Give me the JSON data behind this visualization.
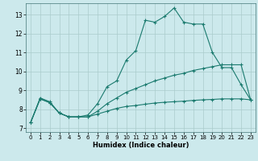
{
  "xlabel": "Humidex (Indice chaleur)",
  "bg_color": "#cce9ec",
  "grid_color": "#aacccc",
  "line_color": "#1a7a6e",
  "x_ticks": [
    0,
    1,
    2,
    3,
    4,
    5,
    6,
    7,
    8,
    9,
    10,
    11,
    12,
    13,
    14,
    15,
    16,
    17,
    18,
    19,
    20,
    21,
    22,
    23
  ],
  "y_ticks": [
    7,
    8,
    9,
    10,
    11,
    12,
    13
  ],
  "xlim": [
    -0.5,
    23.5
  ],
  "ylim": [
    6.8,
    13.6
  ],
  "series1_x": [
    0,
    1,
    2,
    3,
    4,
    5,
    6,
    7,
    8,
    9,
    10,
    11,
    12,
    13,
    14,
    15,
    16,
    17,
    18,
    19,
    20,
    21,
    22,
    23
  ],
  "series1_y": [
    7.3,
    8.6,
    8.4,
    7.8,
    7.6,
    7.6,
    7.7,
    8.3,
    9.2,
    9.5,
    10.6,
    11.1,
    12.7,
    12.6,
    12.9,
    13.35,
    12.6,
    12.5,
    12.5,
    11.0,
    10.2,
    10.2,
    9.3,
    8.5
  ],
  "series2_x": [
    0,
    1,
    2,
    3,
    4,
    5,
    6,
    7,
    8,
    9,
    10,
    11,
    12,
    13,
    14,
    15,
    16,
    17,
    18,
    19,
    20,
    21,
    22,
    23
  ],
  "series2_y": [
    7.3,
    8.55,
    8.35,
    7.8,
    7.6,
    7.6,
    7.6,
    7.9,
    8.3,
    8.6,
    8.9,
    9.1,
    9.3,
    9.5,
    9.65,
    9.8,
    9.9,
    10.05,
    10.15,
    10.25,
    10.35,
    10.35,
    10.35,
    8.5
  ],
  "series3_x": [
    0,
    1,
    2,
    3,
    4,
    5,
    6,
    7,
    8,
    9,
    10,
    11,
    12,
    13,
    14,
    15,
    16,
    17,
    18,
    19,
    20,
    21,
    22,
    23
  ],
  "series3_y": [
    7.3,
    8.55,
    8.35,
    7.8,
    7.6,
    7.6,
    7.6,
    7.75,
    7.9,
    8.05,
    8.15,
    8.2,
    8.27,
    8.33,
    8.37,
    8.4,
    8.43,
    8.47,
    8.5,
    8.52,
    8.55,
    8.55,
    8.55,
    8.5
  ]
}
